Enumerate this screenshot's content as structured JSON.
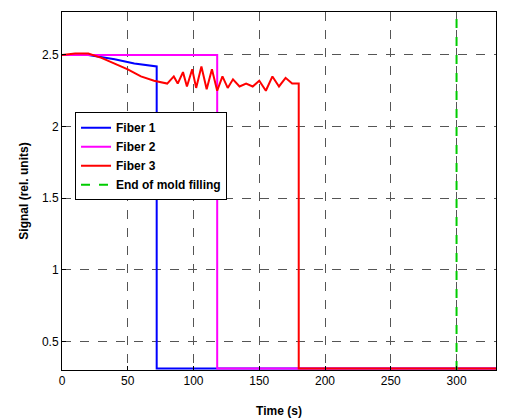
{
  "chart_data": {
    "type": "line",
    "x_label": "Time (s)",
    "y_label": "Signal (rel. units)",
    "xlim": [
      0,
      330
    ],
    "xticks": [
      0,
      50,
      100,
      150,
      200,
      250,
      300
    ],
    "ylim": [
      0.3,
      2.8
    ],
    "yticks": [
      0.5,
      1,
      1.5,
      2,
      2.5
    ],
    "grid": true,
    "legend": "left",
    "series": [
      {
        "name": "Fiber 1",
        "color": "#0000ff",
        "line_style": "solid",
        "x": [
          0,
          20,
          40,
          55,
          72,
          72,
          330
        ],
        "values": [
          2.5,
          2.5,
          2.47,
          2.44,
          2.42,
          0.31,
          0.31
        ]
      },
      {
        "name": "Fiber 2",
        "color": "#ff00ff",
        "line_style": "solid",
        "x": [
          0,
          118,
          118,
          330
        ],
        "values": [
          2.5,
          2.5,
          0.31,
          0.31
        ]
      },
      {
        "name": "Fiber 3",
        "color": "#ff0000",
        "line_style": "solid",
        "x": [
          0,
          10,
          20,
          30,
          40,
          50,
          60,
          70,
          80,
          85,
          88,
          92,
          95,
          99,
          102,
          106,
          110,
          114,
          118,
          122,
          126,
          130,
          135,
          140,
          145,
          150,
          155,
          160,
          165,
          170,
          175,
          180,
          180,
          330
        ],
        "values": [
          2.5,
          2.51,
          2.51,
          2.48,
          2.44,
          2.4,
          2.35,
          2.32,
          2.3,
          2.35,
          2.3,
          2.38,
          2.28,
          2.4,
          2.27,
          2.42,
          2.26,
          2.4,
          2.25,
          2.35,
          2.27,
          2.33,
          2.28,
          2.3,
          2.28,
          2.32,
          2.25,
          2.35,
          2.28,
          2.34,
          2.3,
          2.3,
          0.31,
          0.31
        ]
      },
      {
        "name": "End of mold filling",
        "color": "#00cc00",
        "line_style": "dashed",
        "x": [
          300,
          300
        ],
        "values": [
          0.3,
          2.8
        ]
      }
    ]
  }
}
